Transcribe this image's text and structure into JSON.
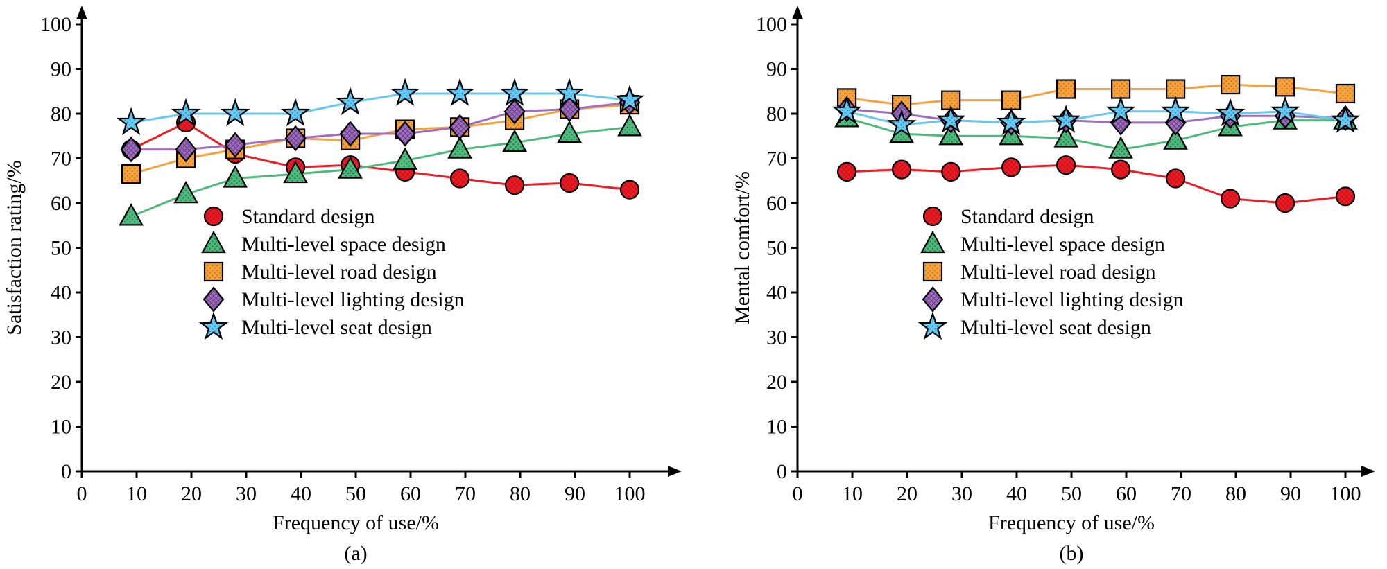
{
  "page": {
    "background": "#ffffff"
  },
  "chart_data": [
    {
      "id": "a",
      "type": "line",
      "title": "",
      "xlabel": "Frequency of use/%",
      "ylabel": "Satisfaction rating/%",
      "caption": "(a)",
      "xlim": [
        0,
        107
      ],
      "ylim": [
        0,
        107
      ],
      "grid": false,
      "legend_position": "inside-center",
      "xticks": [
        0,
        10,
        20,
        30,
        40,
        50,
        60,
        70,
        80,
        90,
        100
      ],
      "yticks": [
        0,
        10,
        20,
        30,
        40,
        50,
        60,
        70,
        80,
        90,
        100
      ],
      "x": [
        9,
        19,
        28,
        39,
        49,
        59,
        69,
        79,
        89,
        100
      ],
      "series": [
        {
          "name": "Standard design",
          "marker": "circle",
          "texture": "cross",
          "color": "#ee1c25",
          "pattern": "#c01016",
          "values": [
            72,
            78,
            71,
            68,
            68.5,
            67,
            65.5,
            64,
            64.5,
            63
          ]
        },
        {
          "name": "Multi-level space design",
          "marker": "triangle",
          "texture": "dots",
          "color": "#4eb97c",
          "pattern": "#1e7a44",
          "values": [
            57,
            62,
            65.5,
            66.5,
            67.5,
            69.5,
            72,
            73.5,
            75.5,
            77
          ]
        },
        {
          "name": "Multi-level road design",
          "marker": "square",
          "texture": "dots",
          "color": "#f5a13c",
          "pattern": "#c4761b",
          "values": [
            66.5,
            70,
            72,
            74.5,
            74,
            76.5,
            77,
            78.5,
            81,
            82
          ]
        },
        {
          "name": "Multi-level lighting design",
          "marker": "diamond",
          "texture": "cross",
          "color": "#a06dbf",
          "pattern": "#5e3a80",
          "values": [
            72,
            72,
            73,
            74.5,
            75.5,
            75.5,
            77,
            80.5,
            81,
            82.5
          ]
        },
        {
          "name": "Multi-level seat design",
          "marker": "star",
          "texture": "dots",
          "color": "#66c9f0",
          "pattern": "#2a8fc7",
          "values": [
            78,
            80,
            80,
            80,
            82.5,
            84.5,
            84.5,
            84.5,
            84.5,
            83
          ]
        }
      ]
    },
    {
      "id": "b",
      "type": "line",
      "title": "",
      "xlabel": "Frequency of use/%",
      "ylabel": "Mental comfort/%",
      "caption": "(b)",
      "xlim": [
        0,
        107
      ],
      "ylim": [
        0,
        107
      ],
      "grid": false,
      "legend_position": "inside-center",
      "xticks": [
        0,
        10,
        20,
        30,
        40,
        50,
        60,
        70,
        80,
        90,
        100
      ],
      "yticks": [
        0,
        10,
        20,
        30,
        40,
        50,
        60,
        70,
        80,
        90,
        100
      ],
      "x": [
        9,
        19,
        28,
        39,
        49,
        59,
        69,
        79,
        89,
        100
      ],
      "series": [
        {
          "name": "Standard design",
          "marker": "circle",
          "texture": "cross",
          "color": "#ee1c25",
          "pattern": "#c01016",
          "values": [
            67,
            67.5,
            67,
            68,
            68.5,
            67.5,
            65.5,
            61,
            60,
            61.5
          ]
        },
        {
          "name": "Multi-level space design",
          "marker": "triangle",
          "texture": "dots",
          "color": "#4eb97c",
          "pattern": "#1e7a44",
          "values": [
            79,
            75.5,
            75,
            75,
            74.5,
            72,
            74,
            77,
            78.5,
            78.5
          ]
        },
        {
          "name": "Multi-level road design",
          "marker": "square",
          "texture": "dots",
          "color": "#f5a13c",
          "pattern": "#c4761b",
          "values": [
            83.5,
            82,
            83,
            83,
            85.5,
            85.5,
            85.5,
            86.5,
            86,
            84.5
          ]
        },
        {
          "name": "Multi-level lighting design",
          "marker": "diamond",
          "texture": "cross",
          "color": "#a06dbf",
          "pattern": "#5e3a80",
          "values": [
            81,
            80,
            78.5,
            78,
            78.5,
            78,
            78,
            79.5,
            79.5,
            79
          ]
        },
        {
          "name": "Multi-level seat design",
          "marker": "star",
          "texture": "dots",
          "color": "#66c9f0",
          "pattern": "#2a8fc7",
          "values": [
            80.5,
            77.5,
            78.5,
            78,
            78.5,
            80.5,
            80.5,
            80,
            80.5,
            78.5
          ]
        }
      ]
    }
  ]
}
